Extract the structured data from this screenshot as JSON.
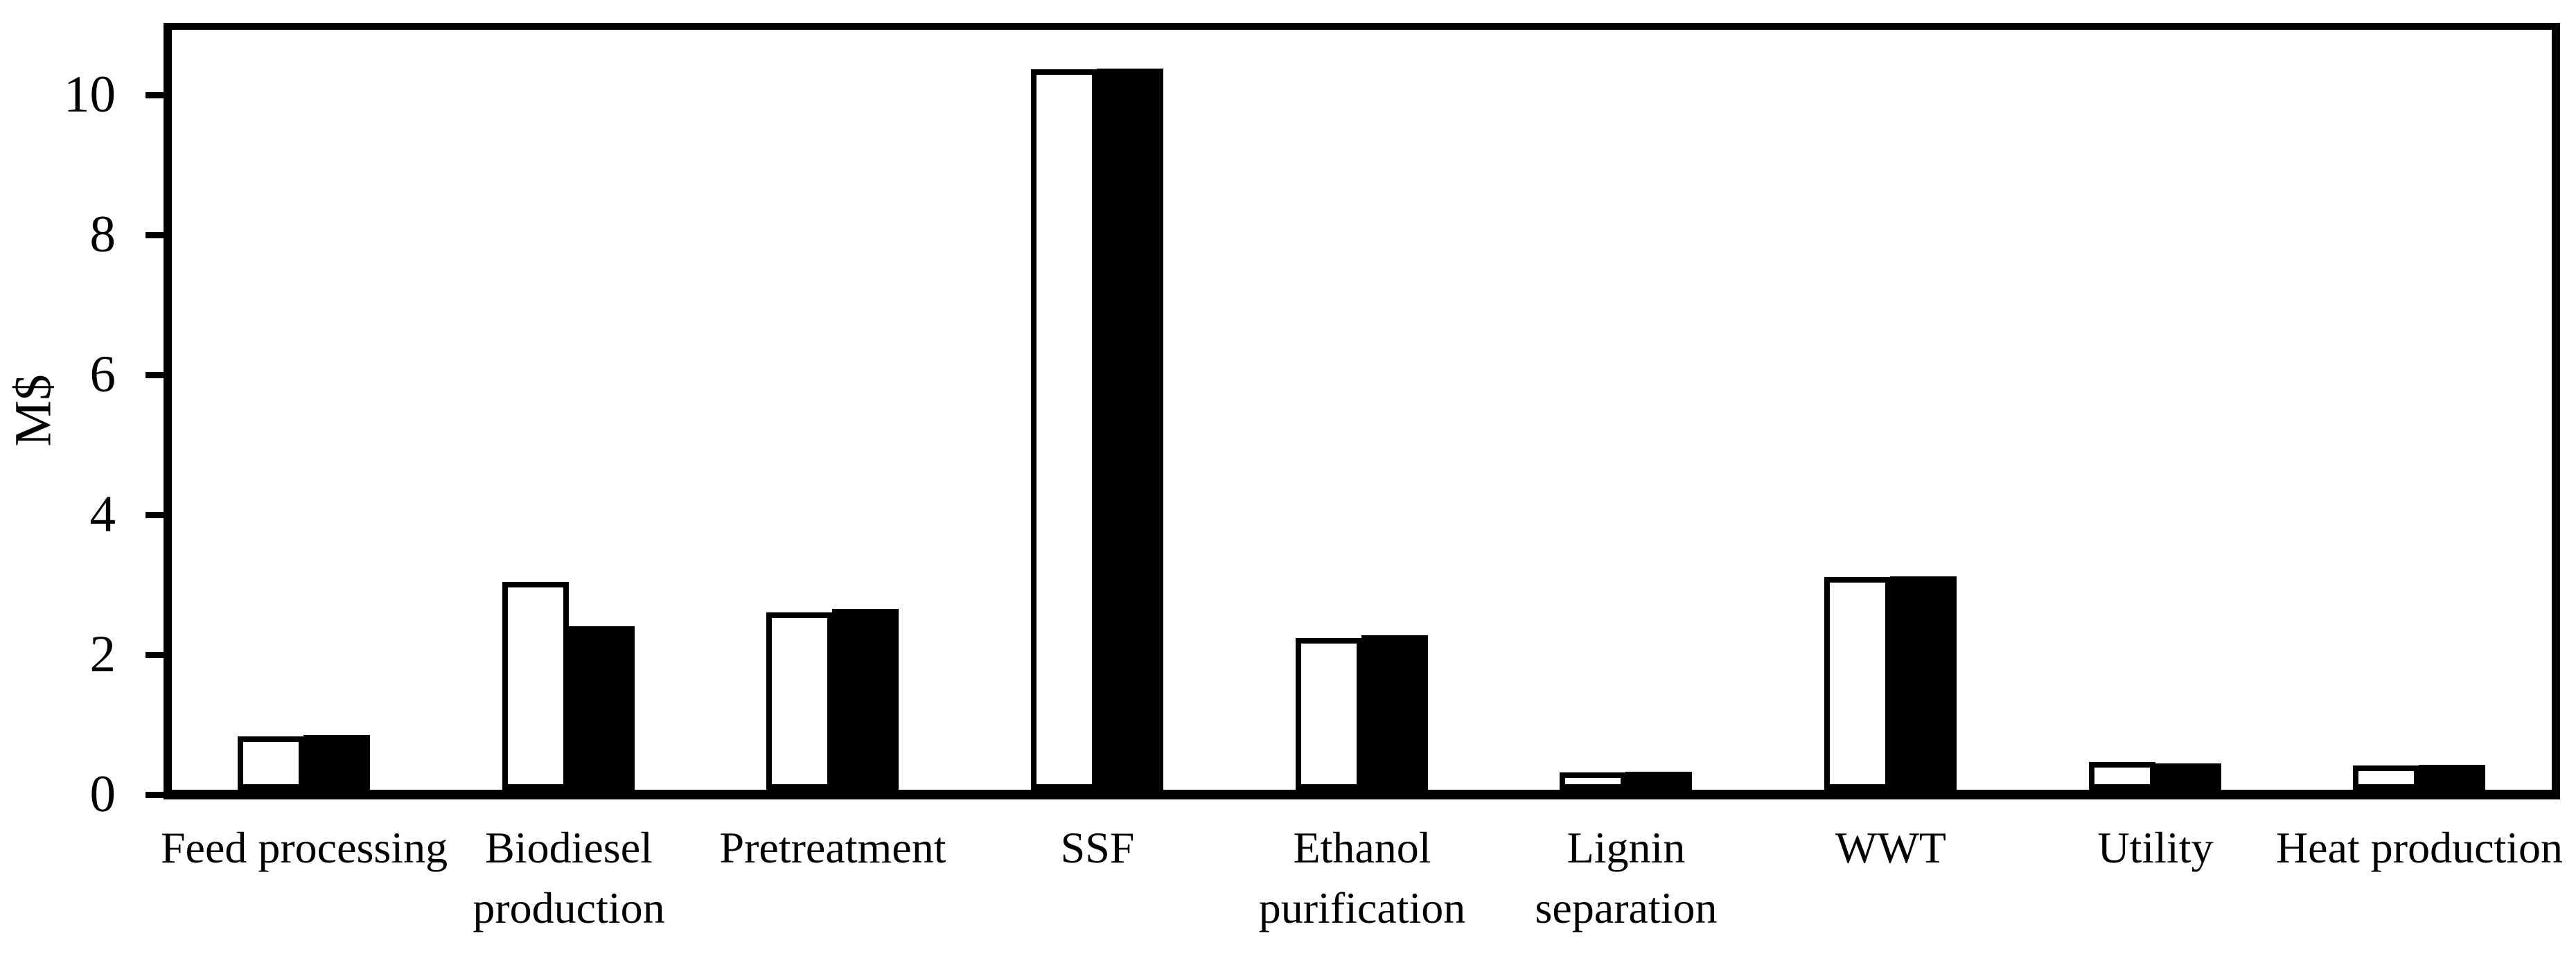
{
  "figure": {
    "background": "#ffffff",
    "frame_color": "#000000"
  },
  "chart_data": {
    "type": "bar",
    "title": "",
    "xlabel": "",
    "ylabel": "M$",
    "categories": [
      "Feed processing",
      "Biodiesel production",
      "Pretreatment",
      "SSF",
      "Ethanol purification",
      "Lignin separation",
      "WWT",
      "Utility",
      "Heat production"
    ],
    "series": [
      {
        "name": "white-bars",
        "fill": "#ffffff",
        "outline": "#000000",
        "values": [
          0.76,
          2.97,
          2.53,
          10.3,
          2.17,
          0.25,
          3.04,
          0.4,
          0.35
        ]
      },
      {
        "name": "black-bars",
        "fill": "#000000",
        "outline": "#000000",
        "values": [
          0.78,
          2.34,
          2.58,
          10.31,
          2.21,
          0.26,
          3.05,
          0.38,
          0.36
        ]
      }
    ],
    "ylim": [
      0,
      10.9
    ],
    "yticks": [
      0,
      2,
      4,
      6,
      8,
      10
    ],
    "grid": false,
    "legend_position": "none"
  }
}
